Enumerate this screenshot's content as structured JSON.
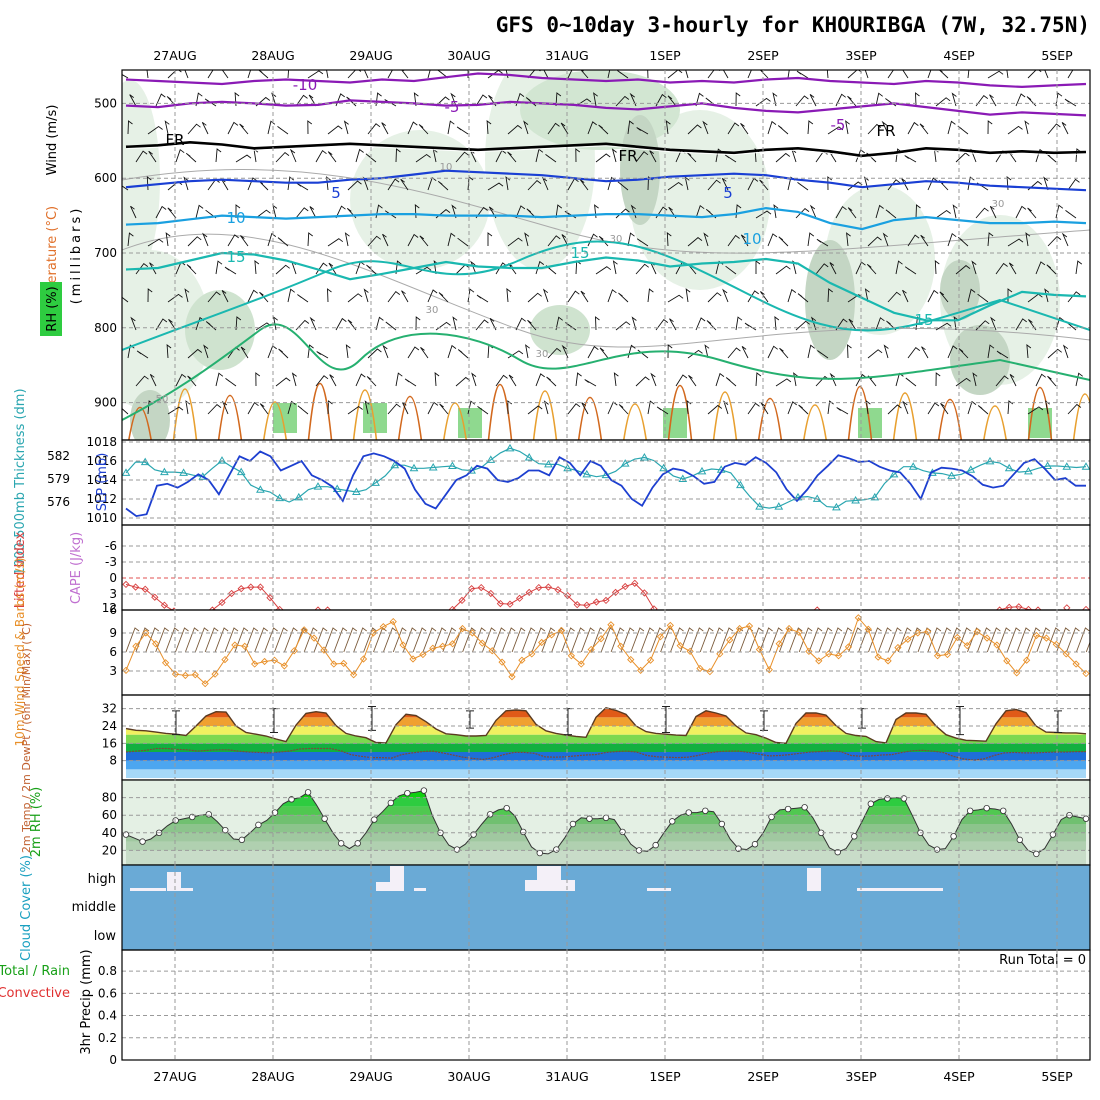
{
  "title": "GFS 0~10day 3-hourly for KHOURIBGA (7W, 32.75N)",
  "dates": [
    "27AUG",
    "28AUG",
    "29AUG",
    "30AUG",
    "31AUG",
    "1SEP",
    "2SEP",
    "3SEP",
    "4SEP",
    "5SEP"
  ],
  "colors": {
    "grid": "#9a9a9a",
    "cloud": "#6aaad6",
    "rh_green": "#2ecc40"
  },
  "chart_data": [
    {
      "type": "line",
      "title": "Upper air: Temperature, Wind, RH",
      "ylabel": "(millibars)",
      "ylim": [
        950,
        450
      ],
      "yticks": [
        500,
        600,
        700,
        800,
        900
      ],
      "side_labels": {
        "wind": "Wind (m/s)",
        "temperature": "Temperature (°C)",
        "rh": "RH (%)"
      },
      "contour_labels": [
        "-10",
        "-5",
        "-5",
        "FR",
        "FR",
        "FR",
        "5",
        "5",
        "10",
        "10",
        "15",
        "15",
        "15",
        "10",
        "30",
        "30",
        "30",
        "30",
        "50"
      ],
      "isotherm_series": [
        {
          "name": "-10",
          "level": [
            468,
            470,
            472,
            474,
            470,
            468,
            470,
            472,
            468,
            470,
            465,
            460,
            462,
            466,
            468,
            470,
            468,
            472,
            470,
            472,
            468,
            466,
            470,
            472,
            474,
            470,
            472,
            476,
            478,
            476,
            474
          ]
        },
        {
          "name": "-5",
          "level": [
            503,
            505,
            500,
            498,
            500,
            503,
            502,
            496,
            498,
            500,
            503,
            502,
            498,
            500,
            502,
            506,
            508,
            504,
            500,
            506,
            510,
            512,
            508,
            504,
            500,
            505,
            510,
            515,
            512,
            514,
            516
          ]
        },
        {
          "name": "FR",
          "level": [
            558,
            556,
            552,
            555,
            560,
            558,
            556,
            554,
            556,
            558,
            560,
            562,
            560,
            558,
            556,
            554,
            558,
            562,
            564,
            566,
            562,
            560,
            564,
            570,
            566,
            560,
            562,
            566,
            564,
            566,
            565
          ]
        },
        {
          "name": "5",
          "level": [
            612,
            608,
            604,
            602,
            604,
            606,
            606,
            602,
            600,
            595,
            590,
            592,
            594,
            596,
            600,
            604,
            602,
            598,
            596,
            594,
            596,
            602,
            606,
            612,
            608,
            604,
            606,
            610,
            612,
            614,
            616
          ]
        },
        {
          "name": "10",
          "level": [
            662,
            660,
            655,
            650,
            652,
            654,
            652,
            650,
            648,
            648,
            650,
            650,
            650,
            652,
            650,
            648,
            648,
            650,
            652,
            648,
            640,
            645,
            660,
            668,
            656,
            652,
            656,
            660,
            660,
            658,
            660
          ]
        },
        {
          "name": "15",
          "level": [
            722,
            720,
            710,
            700,
            702,
            710,
            722,
            735,
            728,
            720,
            712,
            718,
            720,
            720,
            712,
            706,
            710,
            718,
            714,
            712,
            708,
            714,
            740,
            760,
            780,
            790,
            790,
            770,
            752,
            756,
            758
          ]
        }
      ]
    },
    {
      "type": "line",
      "title": "SLP and 1000-500mb thickness",
      "ylabel_left": "1000-500mb Thickness (dm)",
      "ylabel_right": "SLP (mb)",
      "yticks_left": [
        576,
        579,
        582
      ],
      "yticks_right": [
        1010,
        1012,
        1014,
        1016,
        1018
      ],
      "series": [
        {
          "name": "SLP (mb)",
          "values": [
            1011.0,
            1010.2,
            1010.4,
            1013.4,
            1013.6,
            1013.2,
            1013.8,
            1014.6,
            1014.0,
            1012.5,
            1014.5,
            1016.5,
            1016.0,
            1017.0,
            1016.5,
            1015.0,
            1015.5,
            1016.0,
            1014.5,
            1014.0,
            1013.3,
            1011.8,
            1014.5,
            1016.5,
            1016.8,
            1016.5,
            1016.0,
            1015.2,
            1013.0,
            1011.5,
            1011.0,
            1012.5,
            1014.0,
            1014.5,
            1015.5,
            1015.2,
            1014.0,
            1013.8,
            1014.2,
            1015.0,
            1015.0,
            1014.5,
            1016.4,
            1015.8,
            1014.5,
            1016.0,
            1015.5,
            1014.0,
            1013.4,
            1012.0,
            1011.3,
            1013.2,
            1014.6,
            1015.2,
            1015.0,
            1014.4,
            1013.6,
            1013.8,
            1015.4,
            1015.8,
            1015.6,
            1016.4,
            1015.8,
            1014.8,
            1013.0,
            1011.8,
            1013.0,
            1014.5,
            1015.5,
            1016.6,
            1016.3,
            1015.9,
            1016.0,
            1015.4,
            1015.0,
            1014.8,
            1013.6,
            1012.0,
            1014.8,
            1015.3,
            1015.2,
            1015.0,
            1014.4,
            1013.5,
            1013.2,
            1013.4,
            1014.6,
            1015.8,
            1016.2,
            1015.2,
            1014.0,
            1014.2,
            1013.4,
            1013.4
          ]
        },
        {
          "name": "1000-500mb Thickness (dm)",
          "values": [
            579.8,
            581.2,
            581.2,
            580.2,
            579.9,
            579.9,
            579.8,
            579.5,
            579.3,
            580.4,
            581.4,
            580.6,
            579.9,
            578.2,
            577.6,
            577.3,
            576.5,
            576.0,
            576.6,
            577.6,
            578.0,
            578.0,
            577.7,
            577.5,
            577.3,
            577.6,
            578.5,
            579.4,
            580.8,
            580.8,
            580.4,
            580.4,
            580.5,
            580.6,
            580.7,
            580.2,
            580.1,
            580.5,
            581.5,
            582.4,
            583.0,
            582.6,
            581.8,
            581.0,
            580.9,
            580.9,
            580.4,
            580.1,
            579.6,
            579.3,
            579.5,
            580.0,
            581.0,
            581.6,
            581.8,
            581.4,
            580.4,
            579.4,
            579.0,
            579.4,
            580.0,
            580.3,
            580.2,
            579.8,
            578.2,
            576.7,
            575.4,
            575.2,
            575.4,
            576.0,
            576.6,
            576.7,
            576.4,
            575.4,
            575.3,
            576.1,
            576.2,
            576.3,
            576.6,
            578.4,
            579.6,
            580.6,
            580.6,
            580.1,
            579.8,
            579.7,
            579.4,
            579.6,
            580.2,
            580.8,
            581.3,
            581.1,
            580.4,
            579.9,
            580.0,
            580.4,
            580.7,
            580.7,
            580.6,
            580.5,
            580.6
          ]
        }
      ]
    },
    {
      "type": "line",
      "title": "Lifted Index and CAPE",
      "ylabel_left": "Lifted Index",
      "ylabel_right": "CAPE (J/kg)",
      "yticks": [
        "-6",
        "-3",
        "0",
        "3",
        "6"
      ],
      "right_tick": "12",
      "series": [
        {
          "name": "Lifted Index",
          "values": [
            1.2,
            1.7,
            2.1,
            3.6,
            5.1,
            6.2,
            null,
            null,
            null,
            6.0,
            4.6,
            2.9,
            2.0,
            1.7,
            1.7,
            3.7,
            5.9,
            null,
            null,
            null,
            6.0,
            6.0,
            null,
            null,
            null,
            null,
            null,
            null,
            null,
            null,
            null,
            null,
            null,
            null,
            5.9,
            4.2,
            2.0,
            1.8,
            2.9,
            4.8,
            4.9,
            3.8,
            2.7,
            1.8,
            1.7,
            2.2,
            3.3,
            5.0,
            5.1,
            4.5,
            4.2,
            2.7,
            1.6,
            1.0,
            2.8,
            5.8,
            null,
            null,
            null,
            null,
            null,
            null,
            null,
            null,
            null,
            null,
            null,
            null,
            null,
            null,
            null,
            null,
            6.0,
            null,
            null,
            null,
            null,
            null,
            null,
            null,
            null,
            null,
            null,
            null,
            null,
            null,
            null,
            null,
            null,
            null,
            null,
            6.0,
            5.5,
            5.4,
            5.9,
            6.0,
            null,
            null,
            5.6,
            null,
            5.9
          ]
        }
      ]
    },
    {
      "type": "line",
      "title": "10m Wind Speed & Barbs",
      "ylabel": "10m Wind Speed & Barbs (m/s)",
      "yticks": [
        3,
        6,
        9
      ],
      "series": [
        {
          "name": "Speed (m/s)",
          "values": [
            3.1,
            6.9,
            9.0,
            7.3,
            4.3,
            2.5,
            2.3,
            2.4,
            1.0,
            2.5,
            4.8,
            7.1,
            6.9,
            4.1,
            4.5,
            4.7,
            3.8,
            6.2,
            9.5,
            8.2,
            6.3,
            4.1,
            4.2,
            2.4,
            4.9,
            9.0,
            10.0,
            10.8,
            7.1,
            4.9,
            5.6,
            6.6,
            6.9,
            7.3,
            9.7,
            9.0,
            7.4,
            6.2,
            4.4,
            2.1,
            4.7,
            5.7,
            7.5,
            8.7,
            9.4,
            5.4,
            4.1,
            6.4,
            8.1,
            10.3,
            6.9,
            4.8,
            3.1,
            4.7,
            8.4,
            10.2,
            7.0,
            6.1,
            3.4,
            2.9,
            5.7,
            7.9,
            9.7,
            10.1,
            6.4,
            3.2,
            7.3,
            9.7,
            9.1,
            6.1,
            4.6,
            5.7,
            5.4,
            6.8,
            11.4,
            9.6,
            5.2,
            4.6,
            6.7,
            8.0,
            9.0,
            9.2,
            5.4,
            5.6,
            8.3,
            7.0,
            9.2,
            8.2,
            7.1,
            4.6,
            2.7,
            4.7,
            8.6,
            8.2,
            7.2,
            5.7,
            4.1,
            2.6
          ]
        }
      ]
    },
    {
      "type": "area",
      "title": "2m Temp, 2m DewPt, 6hr Min/Max",
      "ylabel": "2m Temp / 2m DewPt / (6hr Min/Max) (°C)",
      "yticks": [
        8,
        16,
        24,
        32
      ],
      "series": [
        {
          "name": "2m Temp",
          "values": [
            22.8,
            22.0,
            21.8,
            21.2,
            20.6,
            20.2,
            19.6,
            24.0,
            28.6,
            30.6,
            30.4,
            24.0,
            21.0,
            20.2,
            19.4,
            18.0,
            16.8,
            24.4,
            29.8,
            30.6,
            30.0,
            24.2,
            20.6,
            19.4,
            18.6,
            16.4,
            16.2,
            24.6,
            29.4,
            28.8,
            26.0,
            22.6,
            20.4,
            20.0,
            19.4,
            19.4,
            19.6,
            26.6,
            31.0,
            31.4,
            31.0,
            24.8,
            21.8,
            20.6,
            19.8,
            19.2,
            18.8,
            28.0,
            32.4,
            31.2,
            29.4,
            24.0,
            21.4,
            20.6,
            20.2,
            19.8,
            19.6,
            28.4,
            31.0,
            30.0,
            28.6,
            24.0,
            20.8,
            20.0,
            18.4,
            16.4,
            16.0,
            25.2,
            30.0,
            30.0,
            29.0,
            24.2,
            20.6,
            19.6,
            19.2,
            16.8,
            16.2,
            27.0,
            30.0,
            30.0,
            29.4,
            24.0,
            20.0,
            18.4,
            17.4,
            17.2,
            17.0,
            25.0,
            31.0,
            31.6,
            30.2,
            24.0,
            21.2,
            21.0,
            20.8,
            20.8,
            20.4
          ]
        },
        {
          "name": "2m DewPt",
          "values": [
            12.0,
            12.4,
            12.8,
            13.6,
            13.6,
            13.2,
            13.0,
            12.4,
            12.8,
            13.0,
            13.0,
            12.4,
            12.0,
            11.8,
            11.6,
            12.0,
            12.4,
            13.4,
            13.6,
            13.6,
            13.6,
            12.6,
            10.8,
            10.0,
            9.4,
            9.4,
            9.2,
            10.8,
            11.6,
            12.2,
            12.4,
            11.6,
            10.6,
            9.6,
            9.0,
            8.6,
            9.4,
            10.8,
            11.8,
            11.8,
            11.4,
            9.8,
            9.6,
            9.8,
            10.2,
            10.6,
            10.8,
            11.8,
            12.2,
            12.4,
            12.0,
            10.4,
            9.8,
            9.6,
            9.4,
            9.6,
            10.4,
            11.6,
            12.2,
            12.4,
            12.4,
            11.8,
            11.0,
            10.2,
            10.4,
            10.8,
            11.4,
            12.0,
            12.2,
            12.6,
            12.2,
            10.4,
            10.0,
            10.2,
            10.6,
            10.8,
            11.8,
            12.6,
            12.8,
            12.4,
            11.8,
            10.0,
            8.8,
            8.2,
            8.8,
            10.4,
            11.6,
            11.8,
            11.6,
            11.6,
            11.8,
            12.0,
            12.0,
            12.2,
            12.2
          ]
        }
      ]
    },
    {
      "type": "area",
      "title": "2m RH",
      "ylabel": "2m RH (%)",
      "yticks": [
        20,
        40,
        60,
        80
      ],
      "series": [
        {
          "name": "2m RH (%)",
          "values": [
            38,
            34,
            30,
            33,
            40,
            48,
            54,
            56,
            58,
            60,
            61,
            53,
            43,
            33,
            32,
            40,
            49,
            54,
            63,
            73,
            78,
            80,
            86,
            72,
            56,
            40,
            28,
            22,
            28,
            40,
            55,
            64,
            74,
            82,
            85,
            86,
            88,
            60,
            40,
            26,
            21,
            27,
            38,
            50,
            61,
            66,
            68,
            59,
            41,
            24,
            17,
            16,
            21,
            34,
            50,
            57,
            56,
            56,
            57,
            55,
            41,
            27,
            20,
            19,
            26,
            40,
            53,
            60,
            63,
            63,
            65,
            64,
            50,
            33,
            22,
            21,
            27,
            40,
            58,
            66,
            67,
            68,
            69,
            57,
            40,
            23,
            18,
            22,
            36,
            54,
            73,
            78,
            79,
            80,
            79,
            60,
            40,
            26,
            21,
            22,
            36,
            55,
            65,
            66,
            68,
            67,
            65,
            50,
            32,
            20,
            16,
            22,
            38,
            55,
            60,
            58,
            56
          ]
        }
      ]
    },
    {
      "type": "bar",
      "title": "Cloud Cover",
      "ylabel": "Cloud Cover (%)",
      "levels": [
        "high",
        "middle",
        "low"
      ]
    },
    {
      "type": "line",
      "title": "3hr Precip",
      "ylabel": "3hr Precip (mm)",
      "side_labels": [
        "Total / Rain",
        "Convective"
      ],
      "yticks": [
        "0",
        "0.2",
        "0.4",
        "0.6",
        "0.8"
      ],
      "annotation": "Run Total = 0",
      "values": [
        0,
        0,
        0,
        0,
        0,
        0,
        0,
        0,
        0,
        0
      ]
    }
  ]
}
